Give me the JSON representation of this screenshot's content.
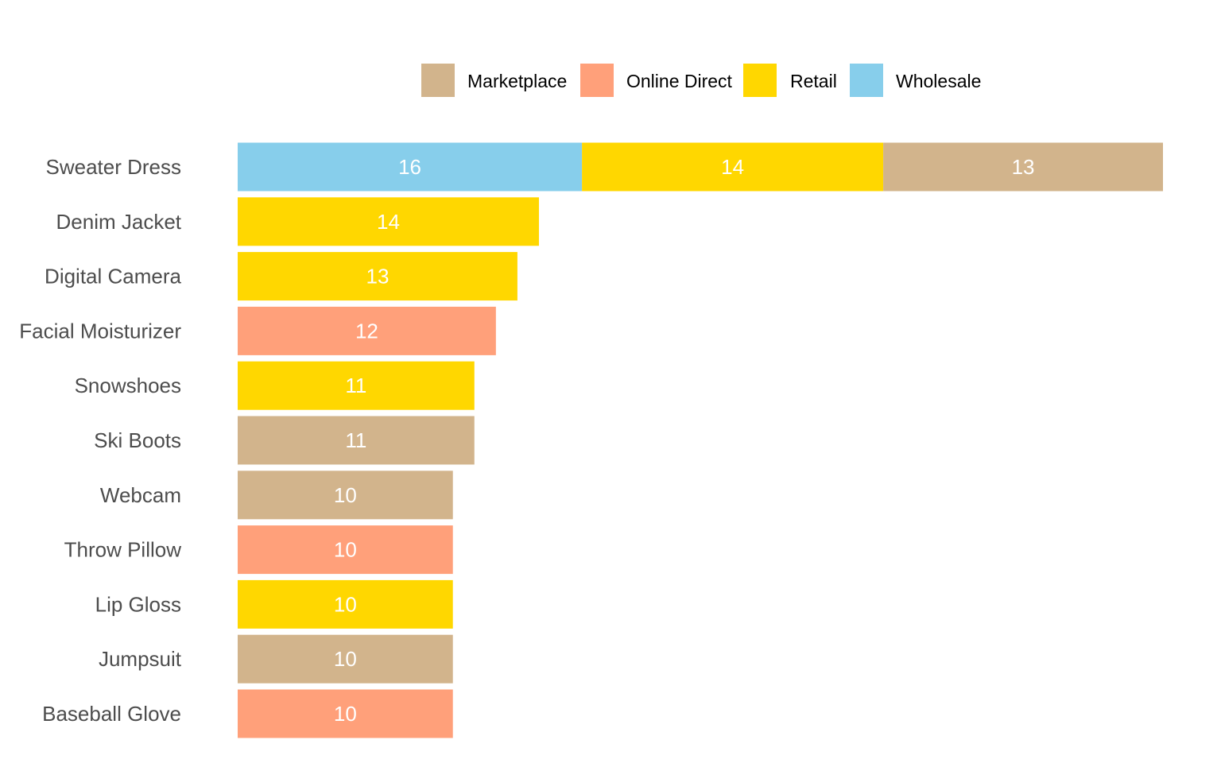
{
  "chart_data": {
    "type": "bar",
    "orientation": "horizontal",
    "stacked": true,
    "title": "",
    "xlabel": "",
    "ylabel": "",
    "grid": false,
    "legend_position": "top",
    "categories": [
      "Sweater Dress",
      "Denim Jacket",
      "Digital Camera",
      "Facial Moisturizer",
      "Snowshoes",
      "Ski Boots",
      "Webcam",
      "Throw Pillow",
      "Lip Gloss",
      "Jumpsuit",
      "Baseball Glove"
    ],
    "series": [
      {
        "name": "Wholesale",
        "color": "#87CEEB",
        "values": [
          16,
          0,
          0,
          0,
          0,
          0,
          0,
          0,
          0,
          0,
          0
        ]
      },
      {
        "name": "Retail",
        "color": "#FFD700",
        "values": [
          14,
          14,
          13,
          0,
          11,
          0,
          0,
          0,
          10,
          0,
          0
        ]
      },
      {
        "name": "Marketplace",
        "color": "#D2B48C",
        "values": [
          13,
          0,
          0,
          0,
          0,
          11,
          10,
          0,
          0,
          10,
          0
        ]
      },
      {
        "name": "Online Direct",
        "color": "#FFA07A",
        "values": [
          0,
          0,
          0,
          12,
          0,
          0,
          0,
          10,
          0,
          0,
          10
        ]
      }
    ],
    "legend_order": [
      "Marketplace",
      "Online Direct",
      "Retail",
      "Wholesale"
    ],
    "xlim": [
      0,
      43
    ]
  }
}
